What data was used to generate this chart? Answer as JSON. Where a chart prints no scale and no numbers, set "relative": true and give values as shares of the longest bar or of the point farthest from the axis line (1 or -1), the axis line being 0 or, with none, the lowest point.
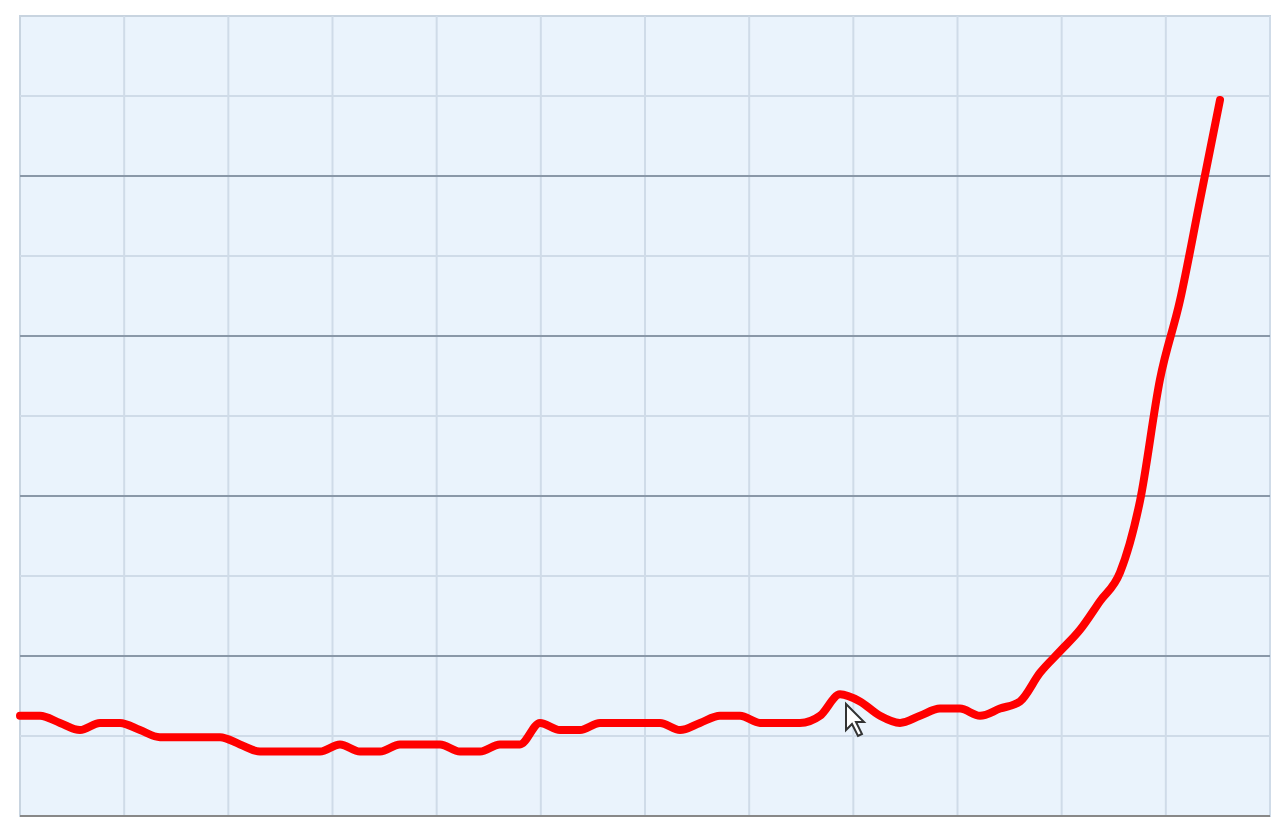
{
  "chart_data": {
    "type": "line",
    "relative": true,
    "grid": true,
    "categories": [
      null,
      null,
      null,
      null,
      null,
      null,
      null,
      null,
      null,
      null,
      null,
      null,
      null,
      null,
      null,
      null,
      null,
      null,
      null,
      null,
      null,
      null,
      null,
      null,
      null,
      null,
      null,
      null,
      null,
      null,
      null,
      null,
      null,
      null,
      null,
      null,
      null,
      null,
      null,
      null,
      null,
      null,
      null,
      null,
      null,
      null,
      null,
      null,
      null,
      null,
      null,
      null,
      null,
      null,
      null,
      null,
      null,
      null,
      null,
      null,
      null
    ],
    "series": [
      {
        "color": "#ff0000",
        "values": [
          0.14,
          0.14,
          0.13,
          0.12,
          0.13,
          0.13,
          0.12,
          0.11,
          0.11,
          0.11,
          0.11,
          0.1,
          0.09,
          0.09,
          0.09,
          0.09,
          0.1,
          0.09,
          0.09,
          0.1,
          0.1,
          0.1,
          0.09,
          0.09,
          0.1,
          0.1,
          0.13,
          0.12,
          0.12,
          0.13,
          0.13,
          0.13,
          0.13,
          0.12,
          0.13,
          0.14,
          0.14,
          0.13,
          0.13,
          0.13,
          0.14,
          0.17,
          0.16,
          0.14,
          0.13,
          0.14,
          0.15,
          0.15,
          0.14,
          0.15,
          0.16,
          0.2,
          0.23,
          0.26,
          0.3,
          0.34,
          0.44,
          0.61,
          0.72,
          0.86,
          1
        ]
      }
    ]
  }
}
